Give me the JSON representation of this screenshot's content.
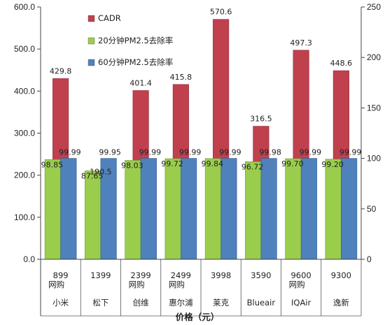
{
  "chart_data": {
    "type": "bar",
    "title": "",
    "xlabel": "价格（元）",
    "ylabel": "",
    "y2label": "",
    "ylim": [
      0,
      600
    ],
    "y2lim": [
      0,
      250
    ],
    "yticks": [
      "0.0",
      "100.0",
      "200.0",
      "300.0",
      "400.0",
      "500.0",
      "600.0"
    ],
    "y2ticks": [
      "0",
      "50",
      "100",
      "150",
      "200",
      "250"
    ],
    "grid": false,
    "legend_position": "inside top-left",
    "categories": [
      {
        "price": "899",
        "channel": "网购",
        "brand": "小米"
      },
      {
        "price": "1399",
        "channel": "",
        "brand": "松下"
      },
      {
        "price": "2399",
        "channel": "网购",
        "brand": "创维"
      },
      {
        "price": "2499",
        "channel": "网购",
        "brand": "惠尔浦"
      },
      {
        "price": "3998",
        "channel": "",
        "brand": "莱克"
      },
      {
        "price": "3590",
        "channel": "",
        "brand": "Blueair"
      },
      {
        "price": "9600",
        "channel": "网购",
        "brand": "IQAir"
      },
      {
        "price": "9300",
        "channel": "",
        "brand": "逸新"
      }
    ],
    "series": [
      {
        "name": "CADR",
        "axis": "left",
        "color": "#c0404e",
        "values": [
          429.8,
          190.5,
          401.4,
          415.8,
          570.6,
          316.5,
          497.3,
          448.6
        ],
        "labels": [
          "429.8",
          "190.5",
          "401.4",
          "415.8",
          "570.6",
          "316.5",
          "497.3",
          "448.6"
        ]
      },
      {
        "name": "20分钟PM2.5去除率",
        "axis": "right",
        "color": "#9acd4c",
        "values": [
          98.85,
          87.65,
          98.03,
          99.72,
          99.84,
          96.72,
          99.7,
          99.2
        ],
        "labels": [
          "98.85",
          "87.65",
          "98.03",
          "99.72",
          "99.84",
          "96.72",
          "99.70",
          "99.20"
        ]
      },
      {
        "name": "60分钟PM2.5去除率",
        "axis": "right",
        "color": "#4f81bd",
        "values": [
          99.99,
          99.95,
          99.99,
          99.99,
          99.99,
          99.98,
          99.99,
          99.99
        ],
        "labels": [
          "99.99",
          "99.95",
          "99.99",
          "99.99",
          "99.99",
          "99.98",
          "99.99",
          "99.99"
        ]
      }
    ]
  }
}
